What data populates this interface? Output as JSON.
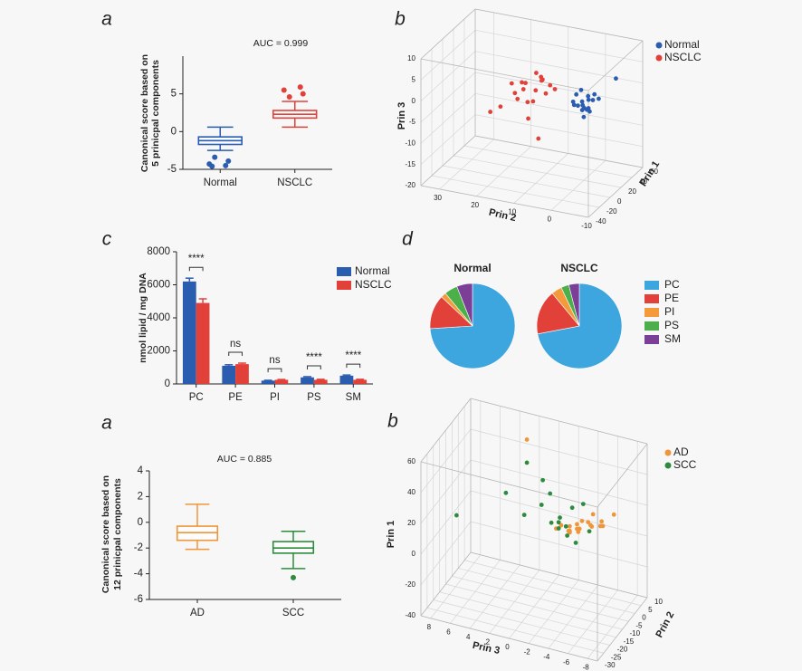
{
  "chart_data": [
    {
      "type": "box",
      "panel": "a",
      "title": "AUC = 0.999",
      "ylabel": [
        "Canonical score based on",
        "5 prinicpal components"
      ],
      "categories": [
        "Normal",
        "NSCLC"
      ],
      "colors": [
        "#2a5db0",
        "#e2413a"
      ],
      "boxes": [
        {
          "whislo": -2.5,
          "q1": -1.7,
          "med": -1.2,
          "q3": -0.7,
          "whishi": 0.6,
          "fliers": [
            -3.4,
            -3.9,
            -4.3,
            -4.5,
            -4.6
          ]
        },
        {
          "whislo": 0.6,
          "q1": 1.8,
          "med": 2.3,
          "q3": 2.8,
          "whishi": 4.0,
          "fliers": [
            4.6,
            5.0,
            5.5,
            5.9
          ]
        }
      ],
      "ylim": [
        -5,
        10
      ],
      "yticks": [
        -5,
        0,
        5
      ]
    },
    {
      "type": "scatter3d",
      "panel": "b",
      "xlabel": "Prin 1",
      "ylabel": "Prin 2",
      "zlabel": "Prin 3",
      "xlim": [
        -40,
        60
      ],
      "xticks": [
        -40,
        -20,
        0,
        20,
        40,
        60
      ],
      "ylim": [
        -10,
        35
      ],
      "yticks": [
        -10,
        0,
        10,
        20,
        30
      ],
      "zlim": [
        -20,
        10
      ],
      "zticks": [
        -20,
        -15,
        -10,
        -5,
        0,
        5,
        10
      ],
      "series": [
        {
          "name": "Normal",
          "color": "#2a5db0",
          "x": [
            18,
            22,
            25,
            20,
            15,
            28,
            24,
            19,
            21,
            26,
            17,
            23,
            30,
            22,
            20,
            27,
            16,
            24,
            21,
            45
          ],
          "y": [
            0,
            -1,
            1,
            2,
            -2,
            0,
            1,
            -1,
            3,
            -2,
            0,
            2,
            -1,
            1,
            0,
            -3,
            2,
            -1,
            0,
            -5
          ],
          "z": [
            -2,
            -1,
            -3,
            0,
            -2,
            -1,
            -4,
            -3,
            -2,
            0,
            -1,
            -3,
            -2,
            1,
            -5,
            -1,
            -2,
            -4,
            -3,
            2
          ]
        },
        {
          "name": "NSCLC",
          "color": "#e2413a",
          "x": [
            0,
            -5,
            5,
            2,
            -8,
            3,
            -2,
            6,
            -4,
            1,
            -10,
            4,
            0,
            -3,
            8,
            -6,
            2,
            -1,
            -15,
            5
          ],
          "y": [
            10,
            12,
            8,
            14,
            11,
            9,
            13,
            7,
            15,
            10,
            18,
            9,
            12,
            16,
            6,
            14,
            11,
            8,
            20,
            10
          ],
          "z": [
            2,
            4,
            1,
            3,
            0,
            5,
            2,
            3,
            1,
            6,
            -2,
            4,
            -5,
            3,
            2,
            0,
            -1,
            5,
            -3,
            -10
          ]
        }
      ]
    },
    {
      "type": "bar",
      "panel": "c",
      "ylabel": "nmol lipid / mg DNA",
      "categories": [
        "PC",
        "PE",
        "PI",
        "PS",
        "SM"
      ],
      "series": [
        {
          "name": "Normal",
          "color": "#2a5db0",
          "values": [
            6200,
            1100,
            200,
            400,
            500
          ],
          "errors": [
            200,
            60,
            20,
            40,
            40
          ]
        },
        {
          "name": "NSCLC",
          "color": "#e2413a",
          "values": [
            4900,
            1200,
            250,
            250,
            250
          ],
          "errors": [
            250,
            60,
            20,
            30,
            30
          ]
        }
      ],
      "annotations": [
        "****",
        "ns",
        "ns",
        "****",
        "****"
      ],
      "ylim": [
        0,
        8000
      ],
      "yticks": [
        0,
        2000,
        4000,
        6000,
        8000
      ]
    },
    {
      "type": "pie",
      "panel": "d",
      "categories": [
        "PC",
        "PE",
        "PI",
        "PS",
        "SM"
      ],
      "colors": [
        "#3ea6de",
        "#e2413a",
        "#f39a3a",
        "#4cb04a",
        "#7b3f98"
      ],
      "series": [
        {
          "name": "Normal",
          "values": [
            74,
            13,
            2,
            5,
            6
          ]
        },
        {
          "name": "NSCLC",
          "values": [
            72,
            17,
            4,
            3,
            4
          ]
        }
      ]
    },
    {
      "type": "box",
      "panel": "a",
      "title": "AUC = 0.885",
      "ylabel": [
        "Canonical score based on",
        "12 prinicpal components"
      ],
      "categories": [
        "AD",
        "SCC"
      ],
      "colors": [
        "#f0963a",
        "#2e8b3e"
      ],
      "boxes": [
        {
          "whislo": -2.1,
          "q1": -1.4,
          "med": -0.8,
          "q3": -0.3,
          "whishi": 1.4,
          "fliers": []
        },
        {
          "whislo": -3.6,
          "q1": -2.4,
          "med": -2.0,
          "q3": -1.5,
          "whishi": -0.7,
          "fliers": [
            -4.3
          ]
        }
      ],
      "ylim": [
        -6,
        4
      ],
      "yticks": [
        -6,
        -4,
        -2,
        0,
        2,
        4
      ]
    },
    {
      "type": "scatter3d",
      "panel": "b",
      "xlabel": "Prin 2",
      "ylabel": "Prin 3",
      "zlabel": "Prin 1",
      "xlim": [
        -30,
        10
      ],
      "xticks": [
        -30,
        -25,
        -20,
        -15,
        -10,
        -5,
        0,
        5,
        10
      ],
      "ylim": [
        -9,
        9
      ],
      "yticks": [
        -8,
        -6,
        -4,
        -2,
        0,
        2,
        4,
        6,
        8
      ],
      "zlim": [
        -40,
        60
      ],
      "zticks": [
        -40,
        -20,
        0,
        20,
        40,
        60
      ],
      "series": [
        {
          "name": "AD",
          "color": "#f0963a",
          "x": [
            -5,
            -4,
            -6,
            -3,
            -7,
            -5,
            -2,
            -8,
            -4,
            -6,
            -3,
            -5,
            -7,
            -2,
            -4,
            -6,
            -5,
            -3,
            0,
            -1
          ],
          "y": [
            -4,
            -5,
            -3,
            -6,
            -4,
            -3,
            -5,
            -2,
            -6,
            -4,
            -5,
            -3,
            -4,
            -6,
            -2,
            -5,
            -3,
            -4,
            2,
            -7
          ],
          "z": [
            12,
            15,
            10,
            18,
            14,
            8,
            20,
            12,
            16,
            11,
            13,
            9,
            17,
            14,
            10,
            19,
            12,
            15,
            55,
            22
          ]
        },
        {
          "name": "SCC",
          "color": "#2e8b3e",
          "x": [
            -3,
            -5,
            -8,
            -6,
            -4,
            -2,
            -7,
            -5,
            -10,
            0,
            -6,
            -4,
            -3,
            -8,
            -9,
            -5,
            -25
          ],
          "y": [
            0,
            -1,
            -3,
            -2,
            0,
            -4,
            -3,
            -5,
            1,
            2,
            -2,
            -1,
            -3,
            -4,
            3,
            -2,
            6
          ],
          "z": [
            35,
            30,
            15,
            10,
            20,
            25,
            8,
            12,
            18,
            40,
            14,
            10,
            22,
            6,
            28,
            16,
            25
          ]
        }
      ]
    }
  ]
}
